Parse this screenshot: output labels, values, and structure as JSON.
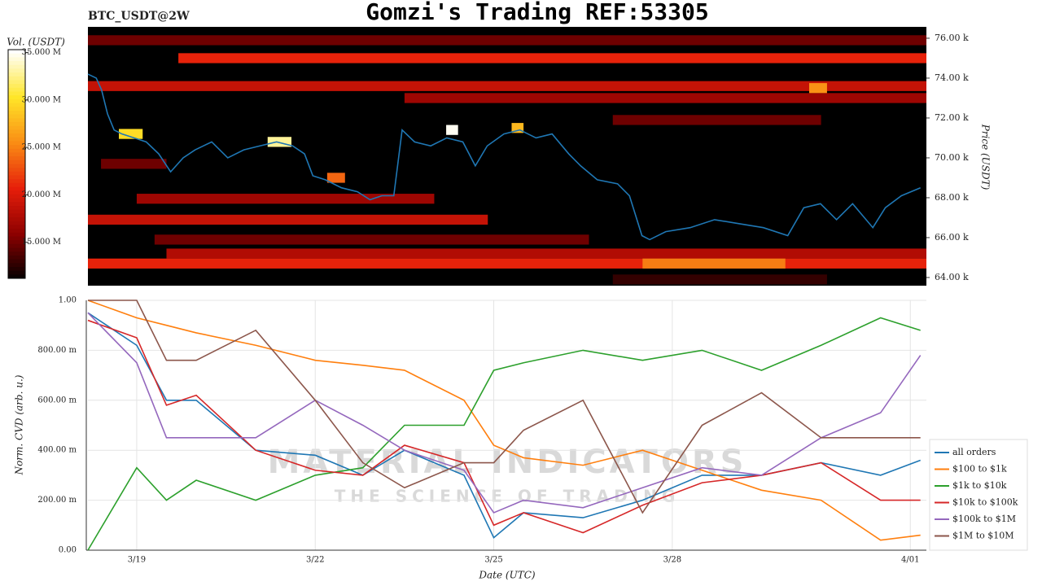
{
  "chart_data": [
    {
      "type": "heatmap",
      "title": "Gomzi's Trading REF:53305",
      "subtitle": "BTC_USDT@2W",
      "y_label": "Price (USDT)",
      "colorbar_label": "Vol. (USDT)",
      "xlim": [
        18.18,
        32.27
      ],
      "ylim": [
        63.59,
        76.57
      ],
      "yticks": [
        {
          "value": 64,
          "label": "64.00 k"
        },
        {
          "value": 66,
          "label": "66.00 k"
        },
        {
          "value": 68,
          "label": "68.00 k"
        },
        {
          "value": 70,
          "label": "70.00 k"
        },
        {
          "value": 72,
          "label": "72.00 k"
        },
        {
          "value": 74,
          "label": "74.00 k"
        },
        {
          "value": 76,
          "label": "76.00 k"
        }
      ],
      "clim": [
        11.2,
        35.3
      ],
      "cticks": [
        {
          "value": 15,
          "label": "15.000 M"
        },
        {
          "value": 20,
          "label": "20.000 M"
        },
        {
          "value": 25,
          "label": "25.000 M"
        },
        {
          "value": 30,
          "label": "30.000 M"
        },
        {
          "value": 35,
          "label": "35.000 M"
        }
      ],
      "bands": [
        {
          "price": 75.9,
          "start": 18.18,
          "end": 32.27,
          "volume": 15
        },
        {
          "price": 75.0,
          "start": 19.7,
          "end": 32.27,
          "volume": 21
        },
        {
          "price": 73.6,
          "start": 18.18,
          "end": 32.27,
          "volume": 19
        },
        {
          "price": 73.0,
          "start": 23.5,
          "end": 32.27,
          "volume": 17
        },
        {
          "price": 71.9,
          "start": 27.0,
          "end": 30.5,
          "volume": 15
        },
        {
          "price": 69.7,
          "start": 18.4,
          "end": 19.5,
          "volume": 15
        },
        {
          "price": 67.95,
          "start": 19.0,
          "end": 24.0,
          "volume": 17
        },
        {
          "price": 66.9,
          "start": 18.18,
          "end": 24.9,
          "volume": 19
        },
        {
          "price": 65.9,
          "start": 19.3,
          "end": 26.6,
          "volume": 15
        },
        {
          "price": 65.2,
          "start": 19.5,
          "end": 32.27,
          "volume": 18
        },
        {
          "price": 64.7,
          "start": 18.18,
          "end": 32.27,
          "volume": 21
        },
        {
          "price": 64.7,
          "start": 27.5,
          "end": 29.9,
          "volume": 25
        },
        {
          "price": 63.9,
          "start": 27.0,
          "end": 30.6,
          "volume": 13
        },
        {
          "price": 71.2,
          "start": 18.7,
          "end": 19.1,
          "volume": 30
        },
        {
          "price": 70.8,
          "start": 21.2,
          "end": 21.6,
          "volume": 33
        },
        {
          "price": 71.4,
          "start": 24.2,
          "end": 24.4,
          "volume": 35
        },
        {
          "price": 73.5,
          "start": 30.3,
          "end": 30.6,
          "volume": 26
        },
        {
          "price": 69.0,
          "start": 22.2,
          "end": 22.5,
          "volume": 24
        },
        {
          "price": 71.5,
          "start": 25.3,
          "end": 25.5,
          "volume": 28
        }
      ],
      "price_series": {
        "color": "#1f77b4",
        "x": [
          18.18,
          18.32,
          18.41,
          18.51,
          18.62,
          18.75,
          18.96,
          19.16,
          19.37,
          19.57,
          19.78,
          19.98,
          20.26,
          20.53,
          20.8,
          21.07,
          21.35,
          21.62,
          21.82,
          21.96,
          22.17,
          22.44,
          22.71,
          22.92,
          23.12,
          23.32,
          23.46,
          23.67,
          23.94,
          24.21,
          24.48,
          24.69,
          24.89,
          25.17,
          25.44,
          25.71,
          25.98,
          26.26,
          26.46,
          26.74,
          27.08,
          27.28,
          27.49,
          27.62,
          27.89,
          28.3,
          28.71,
          29.12,
          29.53,
          29.94,
          30.21,
          30.49,
          30.76,
          31.03,
          31.37,
          31.58,
          31.85,
          32.17
        ],
        "values": [
          74.2,
          74.0,
          73.4,
          72.2,
          71.4,
          71.2,
          71.0,
          70.8,
          70.2,
          69.3,
          70.0,
          70.4,
          70.8,
          70.0,
          70.4,
          70.6,
          70.8,
          70.6,
          70.2,
          69.1,
          68.9,
          68.5,
          68.3,
          67.9,
          68.1,
          68.1,
          71.4,
          70.8,
          70.6,
          71.0,
          70.8,
          69.6,
          70.6,
          71.2,
          71.4,
          71.0,
          71.2,
          70.2,
          69.6,
          68.9,
          68.7,
          68.1,
          66.1,
          65.9,
          66.3,
          66.5,
          66.9,
          66.7,
          66.5,
          66.1,
          67.5,
          67.7,
          66.9,
          67.7,
          66.5,
          67.5,
          68.1,
          68.5
        ]
      }
    },
    {
      "type": "line",
      "x_label": "Date (UTC)",
      "y_label": "Norm. CVD (arb. u.)",
      "watermark": [
        "MATERIAL INDICATORS",
        "THE SCIENCE OF TRADING"
      ],
      "xlim": [
        18.18,
        32.27
      ],
      "ylim": [
        0,
        1
      ],
      "xticks": [
        {
          "value": 19,
          "label": "3/19"
        },
        {
          "value": 22,
          "label": "3/22"
        },
        {
          "value": 25,
          "label": "3/25"
        },
        {
          "value": 28,
          "label": "3/28"
        },
        {
          "value": 32,
          "label": "4/01"
        }
      ],
      "yticks": [
        {
          "value": 0,
          "label": "0.00"
        },
        {
          "value": 0.2,
          "label": "200.00 m"
        },
        {
          "value": 0.4,
          "label": "400.00 m"
        },
        {
          "value": 0.6,
          "label": "600.00 m"
        },
        {
          "value": 0.8,
          "label": "800.00 m"
        },
        {
          "value": 1,
          "label": "1.00"
        }
      ],
      "grid": true,
      "x": [
        18.18,
        19,
        19.5,
        20,
        21,
        22,
        22.8,
        23.5,
        24.5,
        25,
        25.5,
        26.5,
        27.5,
        28.5,
        29.5,
        30.5,
        31.5,
        32.17
      ],
      "series": [
        {
          "name": "all orders",
          "color": "#1f77b4",
          "values": [
            0.95,
            0.82,
            0.6,
            0.6,
            0.4,
            0.38,
            0.3,
            0.4,
            0.3,
            0.05,
            0.15,
            0.13,
            0.2,
            0.3,
            0.3,
            0.35,
            0.3,
            0.36
          ]
        },
        {
          "name": "$100 to $1k",
          "color": "#ff7f0e",
          "values": [
            1.0,
            0.93,
            0.9,
            0.87,
            0.82,
            0.76,
            0.74,
            0.72,
            0.6,
            0.42,
            0.37,
            0.34,
            0.4,
            0.32,
            0.24,
            0.2,
            0.04,
            0.06
          ]
        },
        {
          "name": "$1k to $10k",
          "color": "#2ca02c",
          "values": [
            0.0,
            0.33,
            0.2,
            0.28,
            0.2,
            0.3,
            0.33,
            0.5,
            0.5,
            0.72,
            0.75,
            0.8,
            0.76,
            0.8,
            0.72,
            0.82,
            0.93,
            0.88
          ]
        },
        {
          "name": "$10k to $100k",
          "color": "#d62728",
          "values": [
            0.92,
            0.85,
            0.58,
            0.62,
            0.4,
            0.32,
            0.3,
            0.42,
            0.35,
            0.1,
            0.15,
            0.07,
            0.18,
            0.27,
            0.3,
            0.35,
            0.2,
            0.2
          ]
        },
        {
          "name": "$100k to $1M",
          "color": "#9467bd",
          "values": [
            0.95,
            0.75,
            0.45,
            0.45,
            0.45,
            0.6,
            0.5,
            0.4,
            0.32,
            0.15,
            0.2,
            0.17,
            0.25,
            0.33,
            0.3,
            0.45,
            0.55,
            0.78
          ]
        },
        {
          "name": "$1M to $10M",
          "color": "#8c564b",
          "values": [
            1.0,
            1.0,
            0.76,
            0.76,
            0.88,
            0.6,
            0.35,
            0.25,
            0.35,
            0.35,
            0.48,
            0.6,
            0.15,
            0.5,
            0.63,
            0.45,
            0.45,
            0.45
          ]
        }
      ]
    }
  ]
}
